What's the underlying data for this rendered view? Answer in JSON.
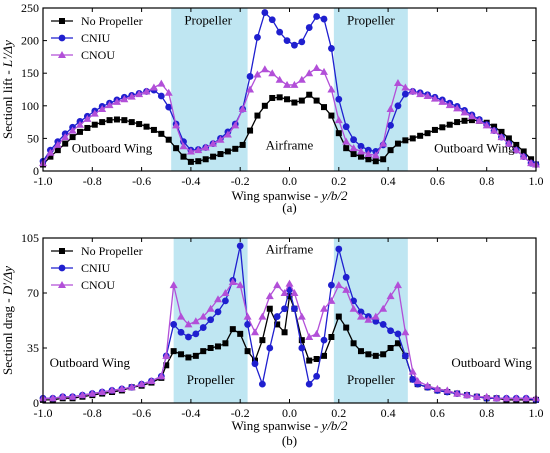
{
  "colors": {
    "region": "#bfe6f2",
    "black": "#000000",
    "blue": "#1f1fcf",
    "purple": "#b24fd8"
  },
  "chart_data": [
    {
      "panel": "(a)",
      "type": "line",
      "xlabel_text": "Wing spanwise - ",
      "xlabel_italic": "y/b/2",
      "ylabel_text": "Sectionl lift - ",
      "ylabel_italic": "L'/Δy",
      "xlim": [
        -1.0,
        1.0
      ],
      "ylim": [
        0,
        250
      ],
      "xticks": [
        "-1.0",
        "-0.8",
        "-0.6",
        "-0.4",
        "-0.2",
        "0.0",
        "0.2",
        "0.4",
        "0.6",
        "0.8",
        "1.0"
      ],
      "xtick_values": [
        -1.0,
        -0.8,
        -0.6,
        -0.4,
        -0.2,
        0.0,
        0.2,
        0.4,
        0.6,
        0.8,
        1.0
      ],
      "yticks": [
        "0",
        "50",
        "100",
        "150",
        "200",
        "250"
      ],
      "ytick_values": [
        0,
        50,
        100,
        150,
        200,
        250
      ],
      "shaded_regions": [
        {
          "x_range": [
            -0.48,
            -0.17
          ],
          "label": "Propeller",
          "label_x": -0.33,
          "label_y": 225
        },
        {
          "x_range": [
            0.18,
            0.48
          ],
          "label": "Propeller",
          "label_x": 0.33,
          "label_y": 225
        }
      ],
      "annotations": [
        {
          "text": "Outboard Wing",
          "x": -0.72,
          "y": 28
        },
        {
          "text": "Airframe",
          "x": 0.0,
          "y": 33
        },
        {
          "text": "Outboard Wing",
          "x": 0.75,
          "y": 28
        }
      ],
      "legend": {
        "placement": "top-left"
      },
      "series": [
        {
          "name": "No Propeller",
          "color": "black",
          "marker": "square",
          "x": [
            -1.0,
            -0.97,
            -0.94,
            -0.91,
            -0.88,
            -0.85,
            -0.82,
            -0.79,
            -0.76,
            -0.73,
            -0.7,
            -0.67,
            -0.64,
            -0.61,
            -0.58,
            -0.55,
            -0.52,
            -0.49,
            -0.46,
            -0.43,
            -0.4,
            -0.37,
            -0.34,
            -0.31,
            -0.28,
            -0.25,
            -0.22,
            -0.19,
            -0.16,
            -0.13,
            -0.1,
            -0.07,
            -0.04,
            -0.01,
            0.02,
            0.05,
            0.08,
            0.11,
            0.14,
            0.17,
            0.2,
            0.23,
            0.26,
            0.29,
            0.32,
            0.35,
            0.38,
            0.41,
            0.44,
            0.47,
            0.5,
            0.53,
            0.56,
            0.59,
            0.62,
            0.65,
            0.68,
            0.71,
            0.74,
            0.77,
            0.8,
            0.83,
            0.86,
            0.89,
            0.92,
            0.95,
            0.98,
            1.0
          ],
          "y": [
            10,
            22,
            32,
            42,
            52,
            60,
            66,
            71,
            75,
            78,
            79,
            78,
            75,
            72,
            68,
            63,
            57,
            48,
            35,
            22,
            14,
            15,
            18,
            22,
            26,
            30,
            34,
            40,
            62,
            85,
            100,
            112,
            113,
            110,
            105,
            108,
            117,
            108,
            98,
            85,
            58,
            35,
            26,
            22,
            18,
            15,
            18,
            32,
            42,
            47,
            50,
            54,
            58,
            63,
            67,
            71,
            75,
            77,
            78,
            77,
            74,
            68,
            60,
            50,
            40,
            30,
            18,
            10
          ]
        },
        {
          "name": "CNIU",
          "color": "blue",
          "marker": "circle",
          "x": [
            -1.0,
            -0.97,
            -0.94,
            -0.91,
            -0.88,
            -0.85,
            -0.82,
            -0.79,
            -0.76,
            -0.73,
            -0.7,
            -0.67,
            -0.64,
            -0.61,
            -0.58,
            -0.55,
            -0.52,
            -0.49,
            -0.46,
            -0.43,
            -0.4,
            -0.37,
            -0.34,
            -0.31,
            -0.28,
            -0.25,
            -0.22,
            -0.19,
            -0.16,
            -0.13,
            -0.1,
            -0.07,
            -0.04,
            -0.01,
            0.02,
            0.05,
            0.08,
            0.11,
            0.14,
            0.17,
            0.2,
            0.23,
            0.26,
            0.29,
            0.32,
            0.35,
            0.38,
            0.41,
            0.44,
            0.47,
            0.5,
            0.53,
            0.56,
            0.59,
            0.62,
            0.65,
            0.68,
            0.71,
            0.74,
            0.77,
            0.8,
            0.83,
            0.86,
            0.89,
            0.92,
            0.95,
            0.98,
            1.0
          ],
          "y": [
            15,
            32,
            45,
            57,
            67,
            76,
            84,
            92,
            99,
            104,
            109,
            113,
            116,
            119,
            122,
            124,
            115,
            98,
            72,
            45,
            32,
            33,
            36,
            42,
            50,
            60,
            72,
            95,
            145,
            205,
            243,
            232,
            213,
            200,
            193,
            198,
            220,
            237,
            233,
            188,
            110,
            68,
            48,
            38,
            32,
            30,
            40,
            70,
            100,
            118,
            122,
            120,
            117,
            113,
            109,
            104,
            99,
            93,
            86,
            79,
            71,
            62,
            52,
            42,
            32,
            22,
            12,
            10
          ]
        },
        {
          "name": "CNOU",
          "color": "purple",
          "marker": "triangle",
          "x": [
            -1.0,
            -0.97,
            -0.94,
            -0.91,
            -0.88,
            -0.85,
            -0.82,
            -0.79,
            -0.76,
            -0.73,
            -0.7,
            -0.67,
            -0.64,
            -0.61,
            -0.58,
            -0.55,
            -0.52,
            -0.49,
            -0.46,
            -0.43,
            -0.4,
            -0.37,
            -0.34,
            -0.31,
            -0.28,
            -0.25,
            -0.22,
            -0.19,
            -0.16,
            -0.13,
            -0.1,
            -0.07,
            -0.04,
            -0.01,
            0.02,
            0.05,
            0.08,
            0.11,
            0.14,
            0.17,
            0.2,
            0.23,
            0.26,
            0.29,
            0.32,
            0.35,
            0.38,
            0.41,
            0.44,
            0.47,
            0.5,
            0.53,
            0.56,
            0.59,
            0.62,
            0.65,
            0.68,
            0.71,
            0.74,
            0.77,
            0.8,
            0.83,
            0.86,
            0.89,
            0.92,
            0.95,
            0.98,
            1.0
          ],
          "y": [
            12,
            28,
            40,
            52,
            62,
            71,
            80,
            88,
            95,
            101,
            106,
            110,
            114,
            118,
            122,
            128,
            134,
            120,
            70,
            38,
            30,
            32,
            36,
            42,
            48,
            56,
            70,
            95,
            125,
            148,
            156,
            150,
            140,
            132,
            132,
            140,
            150,
            158,
            152,
            125,
            78,
            45,
            35,
            30,
            26,
            24,
            42,
            95,
            135,
            128,
            122,
            118,
            115,
            111,
            106,
            101,
            96,
            90,
            84,
            77,
            70,
            62,
            52,
            42,
            32,
            22,
            12,
            10
          ]
        }
      ]
    },
    {
      "panel": "(b)",
      "type": "line",
      "xlabel_text": "Wing spanwise - ",
      "xlabel_italic": "y/b/2",
      "ylabel_text": "Sectionl drag - ",
      "ylabel_italic": "D'/Δy",
      "xlim": [
        -1.0,
        1.0
      ],
      "ylim": [
        0,
        105
      ],
      "xticks": [
        "-1.0",
        "-0.8",
        "-0.6",
        "-0.4",
        "-0.2",
        "0.0",
        "0.2",
        "0.4",
        "0.6",
        "0.8",
        "1.0"
      ],
      "xtick_values": [
        -1.0,
        -0.8,
        -0.6,
        -0.4,
        -0.2,
        0.0,
        0.2,
        0.4,
        0.6,
        0.8,
        1.0
      ],
      "yticks": [
        "0",
        "35",
        "70",
        "105"
      ],
      "ytick_values": [
        0,
        35,
        70,
        105
      ],
      "shaded_regions": [
        {
          "x_range": [
            -0.47,
            -0.17
          ],
          "label": "Propeller",
          "label_x": -0.32,
          "label_y": 12
        },
        {
          "x_range": [
            0.18,
            0.48
          ],
          "label": "Propeller",
          "label_x": 0.33,
          "label_y": 12
        }
      ],
      "annotations": [
        {
          "text": "Airframe",
          "x": 0.0,
          "y": 95
        },
        {
          "text": "Outboard Wing",
          "x": -0.81,
          "y": 23
        },
        {
          "text": "Outboard Wing",
          "x": 0.82,
          "y": 23
        }
      ],
      "legend": {
        "placement": "top-left"
      },
      "series": [
        {
          "name": "No Propeller",
          "color": "black",
          "marker": "square",
          "x": [
            -1.0,
            -0.96,
            -0.92,
            -0.88,
            -0.84,
            -0.8,
            -0.76,
            -0.72,
            -0.68,
            -0.64,
            -0.6,
            -0.56,
            -0.52,
            -0.5,
            -0.47,
            -0.44,
            -0.41,
            -0.38,
            -0.35,
            -0.32,
            -0.29,
            -0.26,
            -0.23,
            -0.2,
            -0.17,
            -0.14,
            -0.11,
            -0.08,
            -0.05,
            -0.02,
            0.0,
            0.02,
            0.05,
            0.08,
            0.11,
            0.14,
            0.17,
            0.2,
            0.23,
            0.26,
            0.29,
            0.32,
            0.35,
            0.38,
            0.41,
            0.44,
            0.47,
            0.5,
            0.52,
            0.56,
            0.6,
            0.64,
            0.68,
            0.72,
            0.76,
            0.8,
            0.84,
            0.88,
            0.92,
            0.96,
            1.0
          ],
          "y": [
            2,
            2,
            3,
            3,
            4,
            5,
            6,
            7,
            8,
            10,
            11,
            13,
            16,
            24,
            33,
            31,
            29,
            30,
            33,
            35,
            36,
            38,
            47,
            44,
            33,
            27,
            40,
            60,
            50,
            45,
            68,
            60,
            40,
            27,
            28,
            30,
            42,
            55,
            48,
            38,
            33,
            31,
            30,
            31,
            35,
            38,
            30,
            15,
            12,
            10,
            8,
            7,
            6,
            5,
            4,
            3,
            3,
            2,
            2,
            2,
            2
          ]
        },
        {
          "name": "CNIU",
          "color": "blue",
          "marker": "circle",
          "x": [
            -1.0,
            -0.96,
            -0.92,
            -0.88,
            -0.84,
            -0.8,
            -0.76,
            -0.72,
            -0.68,
            -0.64,
            -0.6,
            -0.56,
            -0.52,
            -0.5,
            -0.47,
            -0.44,
            -0.41,
            -0.38,
            -0.35,
            -0.32,
            -0.29,
            -0.26,
            -0.23,
            -0.2,
            -0.17,
            -0.14,
            -0.11,
            -0.08,
            -0.05,
            -0.02,
            0.0,
            0.02,
            0.05,
            0.08,
            0.11,
            0.14,
            0.17,
            0.2,
            0.23,
            0.26,
            0.29,
            0.32,
            0.35,
            0.38,
            0.41,
            0.44,
            0.47,
            0.5,
            0.52,
            0.56,
            0.6,
            0.64,
            0.68,
            0.72,
            0.76,
            0.8,
            0.84,
            0.88,
            0.92,
            0.96,
            1.0
          ],
          "y": [
            3,
            3,
            4,
            4,
            5,
            6,
            7,
            8,
            9,
            10,
            12,
            14,
            17,
            30,
            50,
            45,
            42,
            44,
            48,
            53,
            58,
            65,
            78,
            100,
            50,
            25,
            12,
            35,
            55,
            60,
            72,
            60,
            35,
            12,
            17,
            40,
            75,
            98,
            80,
            65,
            58,
            55,
            52,
            50,
            46,
            44,
            30,
            15,
            12,
            10,
            8,
            7,
            6,
            5,
            4,
            3,
            3,
            3,
            3,
            3,
            2
          ]
        },
        {
          "name": "CNOU",
          "color": "purple",
          "marker": "triangle",
          "x": [
            -1.0,
            -0.96,
            -0.92,
            -0.88,
            -0.84,
            -0.8,
            -0.76,
            -0.72,
            -0.68,
            -0.64,
            -0.6,
            -0.56,
            -0.52,
            -0.5,
            -0.47,
            -0.44,
            -0.41,
            -0.38,
            -0.35,
            -0.32,
            -0.29,
            -0.26,
            -0.23,
            -0.2,
            -0.17,
            -0.14,
            -0.11,
            -0.08,
            -0.05,
            -0.02,
            0.0,
            0.02,
            0.05,
            0.08,
            0.11,
            0.14,
            0.17,
            0.2,
            0.23,
            0.26,
            0.29,
            0.32,
            0.35,
            0.38,
            0.41,
            0.44,
            0.47,
            0.5,
            0.52,
            0.56,
            0.6,
            0.64,
            0.68,
            0.72,
            0.76,
            0.8,
            0.84,
            0.88,
            0.92,
            0.96,
            1.0
          ],
          "y": [
            3,
            3,
            4,
            4,
            5,
            6,
            7,
            8,
            9,
            10,
            12,
            14,
            17,
            30,
            75,
            55,
            50,
            52,
            55,
            60,
            66,
            70,
            77,
            75,
            55,
            45,
            55,
            68,
            75,
            70,
            76,
            70,
            55,
            42,
            44,
            60,
            65,
            75,
            72,
            60,
            55,
            53,
            55,
            60,
            68,
            75,
            45,
            20,
            14,
            11,
            9,
            8,
            6,
            5,
            4,
            4,
            3,
            3,
            3,
            3,
            3
          ]
        }
      ]
    }
  ]
}
